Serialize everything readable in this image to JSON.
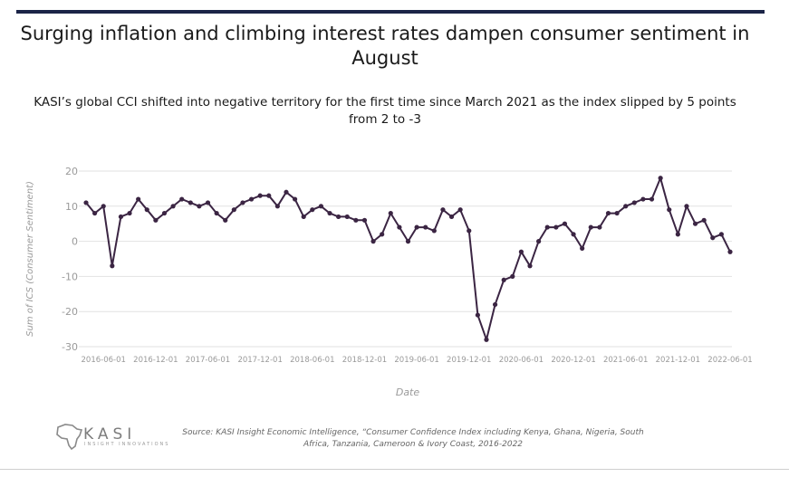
{
  "header": {
    "title": "Surging inflation and climbing interest rates dampen consumer sentiment in August",
    "subtitle": "KASI’s global CCI shifted into negative territory for the first time since March 2021 as the index slipped by 5 points from 2 to -3"
  },
  "footer": {
    "source": "Source: KASI Insight Economic Intelligence, “Consumer Confidence Index including Kenya, Ghana, Nigeria, South Africa, Tanzania, Cameroon & Ivory Coast, 2016-2022",
    "logo_text": "KASI",
    "logo_subtext": "INSIGHT INNOVATIONS"
  },
  "colors": {
    "line": "#3b2543",
    "grid": "#e2e2e2",
    "axis_text": "#9a9a9a",
    "rule": "#1b2447"
  },
  "chart_data": {
    "type": "line",
    "xlabel": "Date",
    "ylabel": "Sum of ICS (Consumer Sentiment)",
    "ylim": [
      -30,
      20
    ],
    "yticks": [
      20,
      10,
      0,
      -10,
      -20,
      -30
    ],
    "grid": true,
    "x_tick_labels": [
      "2016-06-01",
      "2016-12-01",
      "2017-06-01",
      "2017-12-01",
      "2018-06-01",
      "2018-12-01",
      "2019-06-01",
      "2019-12-01",
      "2020-06-01",
      "2020-12-01",
      "2021-06-01",
      "2021-12-01",
      "2022-06-01"
    ],
    "x_start": "2016-04",
    "series": [
      {
        "values": [
          11,
          8,
          10,
          -7,
          7,
          8,
          12,
          9,
          6,
          8,
          10,
          12,
          11,
          10,
          11,
          8,
          6,
          9,
          11,
          12,
          13,
          13,
          10,
          14,
          12,
          7,
          9,
          10,
          8,
          7,
          7,
          6,
          6,
          0,
          2,
          8,
          4,
          0,
          4,
          4,
          3,
          9,
          7,
          9,
          3,
          -21,
          -28,
          -18,
          -11,
          -10,
          -3,
          -7,
          0,
          4,
          4,
          5,
          2,
          -2,
          4,
          4,
          8,
          8,
          10,
          11,
          12,
          12,
          18,
          9,
          2,
          10,
          5,
          6,
          1,
          2,
          -3
        ]
      }
    ]
  }
}
